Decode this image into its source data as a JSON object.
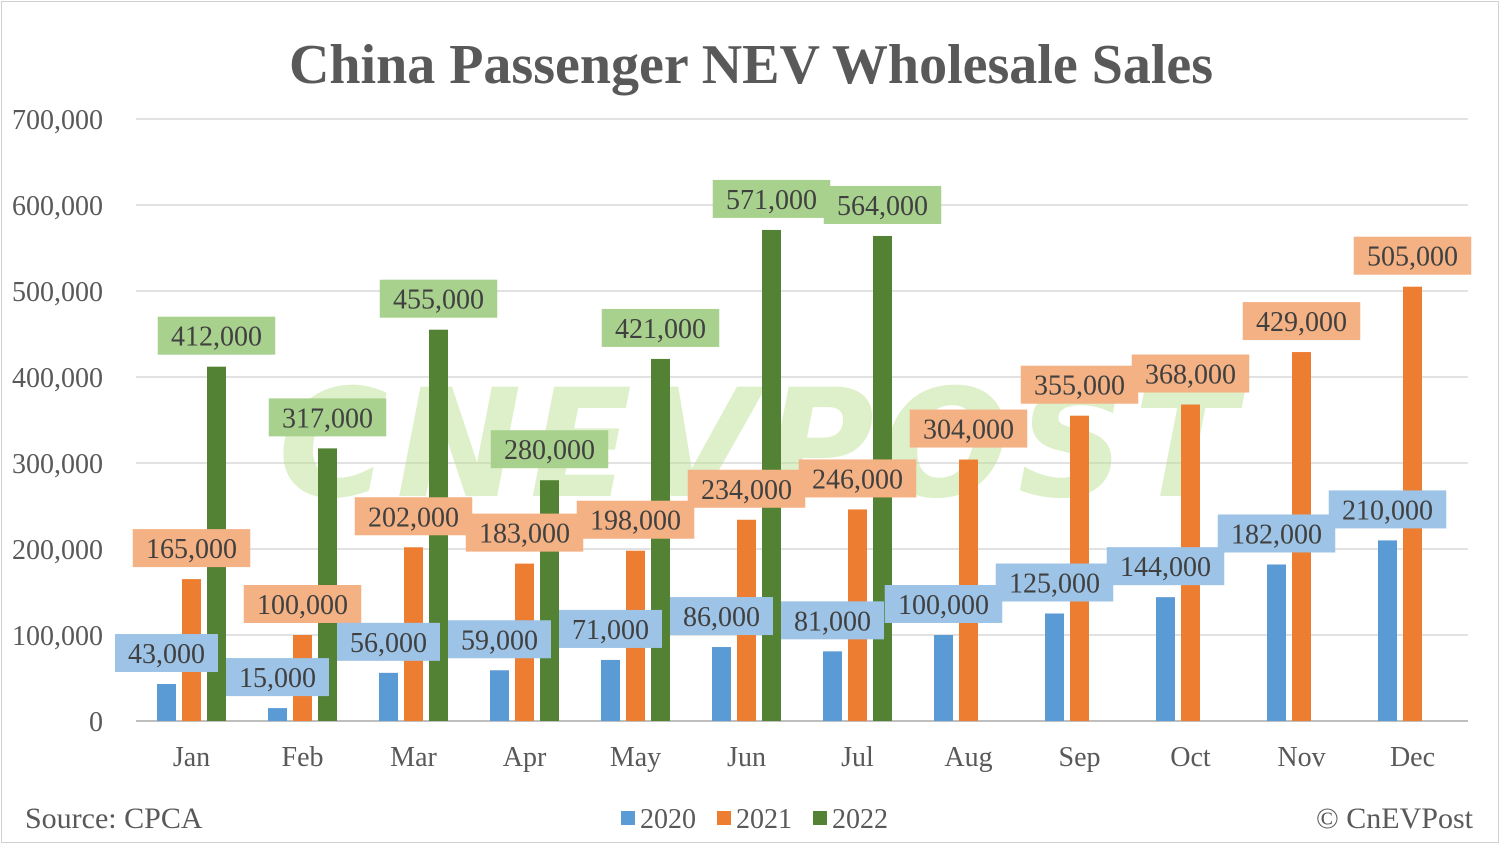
{
  "chart_data": {
    "type": "bar",
    "title": "China Passenger NEV Wholesale Sales",
    "categories": [
      "Jan",
      "Feb",
      "Mar",
      "Apr",
      "May",
      "Jun",
      "Jul",
      "Aug",
      "Sep",
      "Oct",
      "Nov",
      "Dec"
    ],
    "series": [
      {
        "name": "2020",
        "color": "#5B9BD5",
        "label_bg": "#9DC3E6",
        "values": [
          43000,
          15000,
          56000,
          59000,
          71000,
          86000,
          81000,
          100000,
          125000,
          144000,
          182000,
          210000
        ]
      },
      {
        "name": "2021",
        "color": "#ED7D31",
        "label_bg": "#F4B183",
        "values": [
          165000,
          100000,
          202000,
          183000,
          198000,
          234000,
          246000,
          304000,
          355000,
          368000,
          429000,
          505000
        ]
      },
      {
        "name": "2022",
        "color": "#548235",
        "label_bg": "#A9D18E",
        "values": [
          412000,
          317000,
          455000,
          280000,
          421000,
          571000,
          564000,
          null,
          null,
          null,
          null,
          null
        ]
      }
    ],
    "data_labels": {
      "2020": [
        "43,000",
        "15,000",
        "56,000",
        "59,000",
        "71,000",
        "86,000",
        "81,000",
        "100,000",
        "125,000",
        "144,000",
        "182,000",
        "210,000"
      ],
      "2021": [
        "165,000",
        "100,000",
        "202,000",
        "183,000",
        "198,000",
        "234,000",
        "246,000",
        "304,000",
        "355,000",
        "368,000",
        "429,000",
        "505,000"
      ],
      "2022": [
        "412,000",
        "317,000",
        "455,000",
        "280,000",
        "421,000",
        "571,000",
        "564,000"
      ]
    },
    "y_ticks": [
      "0",
      "100,000",
      "200,000",
      "300,000",
      "400,000",
      "500,000",
      "600,000",
      "700,000"
    ],
    "ylim": [
      0,
      700000
    ],
    "grid": true,
    "legend_position": "bottom",
    "xlabel": "",
    "ylabel": "",
    "source": "Source: CPCA",
    "credit": "© CnEVPost",
    "watermark": "CNEVPOST"
  }
}
